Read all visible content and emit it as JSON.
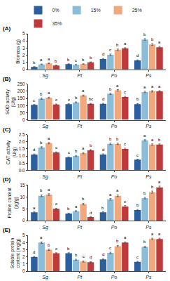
{
  "chart_data": [
    {
      "type": "bar",
      "title": "(A)",
      "ylabel": "Biomass (g)",
      "categories": [
        "Sg",
        "Pt",
        "Po",
        "Ps"
      ],
      "ylim": [
        0,
        5
      ],
      "yticks": [
        0,
        1,
        2,
        3,
        4,
        5
      ],
      "grid": false,
      "legend": "top",
      "series": [
        {
          "name": "0%",
          "color": "#2B5F9E",
          "values": [
            0.35,
            0.75,
            1.45,
            1.25
          ],
          "errors": [
            0.05,
            0.04,
            0.08,
            0.08
          ],
          "annotations": [
            "b",
            "b",
            "d",
            "d"
          ]
        },
        {
          "name": "15%",
          "color": "#8BBDD9",
          "values": [
            0.7,
            0.65,
            2.05,
            4.2
          ],
          "errors": [
            0.05,
            0.04,
            0.1,
            0.12
          ],
          "annotations": [
            "a",
            "c",
            "c",
            "b"
          ]
        },
        {
          "name": "25%",
          "color": "#F2A87C",
          "values": [
            0.85,
            0.75,
            2.75,
            3.5
          ],
          "errors": [
            0.05,
            0.04,
            0.1,
            0.12
          ],
          "annotations": [
            "a",
            "b",
            "b",
            "b"
          ]
        },
        {
          "name": "35%",
          "color": "#BF3B3B",
          "values": [
            0.55,
            1.0,
            2.95,
            3.1
          ],
          "errors": [
            0.05,
            0.05,
            0.1,
            0.12
          ],
          "annotations": [
            "b",
            "b",
            "a",
            "a"
          ]
        }
      ]
    },
    {
      "type": "bar",
      "title": "(B)",
      "ylabel": "SOD activity (U/g)",
      "categories": [
        "Sg",
        "Pt",
        "Po",
        "Ps"
      ],
      "ylim": [
        0,
        250
      ],
      "yticks": [
        0,
        50,
        100,
        150,
        200,
        250
      ],
      "grid": false,
      "series": [
        {
          "name": "0%",
          "color": "#2B5F9E",
          "values": [
            105,
            110,
            112,
            110
          ],
          "errors": [
            3,
            3,
            4,
            4
          ],
          "annotations": [
            "c",
            "c",
            "d",
            "b"
          ]
        },
        {
          "name": "15%",
          "color": "#8BBDD9",
          "values": [
            148,
            122,
            182,
            195
          ],
          "errors": [
            4,
            4,
            5,
            5
          ],
          "annotations": [
            "b",
            "b",
            "b",
            "a"
          ]
        },
        {
          "name": "25%",
          "color": "#F2A87C",
          "values": [
            155,
            170,
            207,
            200
          ],
          "errors": [
            4,
            4,
            5,
            5
          ],
          "annotations": [
            "a",
            "a",
            "a",
            "a"
          ]
        },
        {
          "name": "35%",
          "color": "#BF3B3B",
          "values": [
            108,
            112,
            160,
            200
          ],
          "errors": [
            3,
            3,
            5,
            5
          ],
          "annotations": [
            "c",
            "bc",
            "c",
            "a"
          ]
        }
      ]
    },
    {
      "type": "bar",
      "title": "(C)",
      "ylabel": "CAT activity (U/g)",
      "categories": [
        "Sg",
        "Pt",
        "Po",
        "Ps"
      ],
      "ylim": [
        0,
        2.5
      ],
      "yticks": [
        {
          "value": 0,
          "label": "0.0"
        },
        0.5,
        {
          "value": 1,
          "label": "1.0"
        },
        1.5,
        {
          "value": 2,
          "label": "2.0"
        },
        2.5
      ],
      "grid": false,
      "series": [
        {
          "name": "0%",
          "color": "#2B5F9E",
          "values": [
            1.1,
            0.9,
            1.1,
            0.75
          ],
          "errors": [
            0.04,
            0.04,
            0.05,
            0.03
          ],
          "annotations": [
            "d",
            "c",
            "d",
            "c"
          ]
        },
        {
          "name": "15%",
          "color": "#8BBDD9",
          "values": [
            1.6,
            1.0,
            1.85,
            2.1
          ],
          "errors": [
            0.05,
            0.04,
            0.05,
            0.05
          ],
          "annotations": [
            "b",
            "b",
            "b",
            "a"
          ]
        },
        {
          "name": "25%",
          "color": "#F2A87C",
          "values": [
            1.9,
            1.2,
            1.85,
            1.8
          ],
          "errors": [
            0.05,
            0.05,
            0.05,
            0.05
          ],
          "annotations": [
            "a",
            "a",
            "b",
            "a"
          ]
        },
        {
          "name": "35%",
          "color": "#BF3B3B",
          "values": [
            1.25,
            1.4,
            1.5,
            1.8
          ],
          "errors": [
            0.04,
            0.05,
            0.05,
            0.05
          ],
          "annotations": [
            "c",
            "b",
            "c",
            "b"
          ]
        }
      ]
    },
    {
      "type": "bar",
      "title": "(D)",
      "ylabel": "Proline content (μg/g)",
      "categories": [
        "Sg",
        "Pt",
        "Po",
        "Ps"
      ],
      "ylim": [
        0,
        15
      ],
      "yticks": [
        0,
        5,
        10,
        15
      ],
      "grid": false,
      "series": [
        {
          "name": "0%",
          "color": "#2B5F9E",
          "values": [
            3.5,
            3.0,
            3.5,
            4.5
          ],
          "errors": [
            0.25,
            0.2,
            0.25,
            0.25
          ],
          "annotations": [
            "a",
            "b",
            "b",
            "b"
          ]
        },
        {
          "name": "15%",
          "color": "#8BBDD9",
          "values": [
            10.5,
            4.0,
            9.0,
            9.5
          ],
          "errors": [
            0.35,
            0.25,
            0.35,
            0.35
          ],
          "annotations": [
            "b",
            "a",
            "a",
            "b"
          ]
        },
        {
          "name": "25%",
          "color": "#F2A87C",
          "values": [
            11.0,
            7.0,
            10.5,
            12.0
          ],
          "errors": [
            0.35,
            0.35,
            0.35,
            0.45
          ],
          "annotations": [
            "a",
            "b",
            "a",
            "b"
          ]
        },
        {
          "name": "35%",
          "color": "#BF3B3B",
          "values": [
            5.0,
            1.5,
            6.0,
            14.0
          ],
          "errors": [
            0.25,
            0.15,
            0.35,
            0.55
          ],
          "annotations": [
            "c",
            "d",
            "c",
            "a"
          ]
        }
      ]
    },
    {
      "type": "bar",
      "title": "(E)",
      "ylabel": "Soluble protein content (mg/g)",
      "categories": [
        "Sg",
        "Pt",
        "Po",
        "Ps"
      ],
      "ylim": [
        0,
        5
      ],
      "yticks": [
        0,
        1,
        2,
        3,
        4,
        5
      ],
      "grid": false,
      "series": [
        {
          "name": "0%",
          "color": "#2B5F9E",
          "values": [
            2.0,
            2.5,
            1.65,
            1.3
          ],
          "errors": [
            0.08,
            0.08,
            0.08,
            0.08
          ],
          "annotations": [
            "d",
            "b",
            "d",
            "c"
          ]
        },
        {
          "name": "15%",
          "color": "#8BBDD9",
          "values": [
            4.0,
            1.6,
            2.55,
            3.4
          ],
          "errors": [
            0.1,
            0.08,
            0.1,
            0.1
          ],
          "annotations": [
            "a",
            "b",
            "c",
            "b"
          ]
        },
        {
          "name": "25%",
          "color": "#F2A87C",
          "values": [
            3.0,
            1.35,
            3.5,
            4.5
          ],
          "errors": [
            0.1,
            0.08,
            0.1,
            0.12
          ],
          "annotations": [
            "b",
            "c",
            "b",
            "a"
          ]
        },
        {
          "name": "35%",
          "color": "#BF3B3B",
          "values": [
            2.5,
            1.25,
            4.0,
            4.5
          ],
          "errors": [
            0.08,
            0.08,
            0.1,
            0.12
          ],
          "annotations": [
            "c",
            "d",
            "a",
            "a"
          ]
        }
      ]
    }
  ]
}
